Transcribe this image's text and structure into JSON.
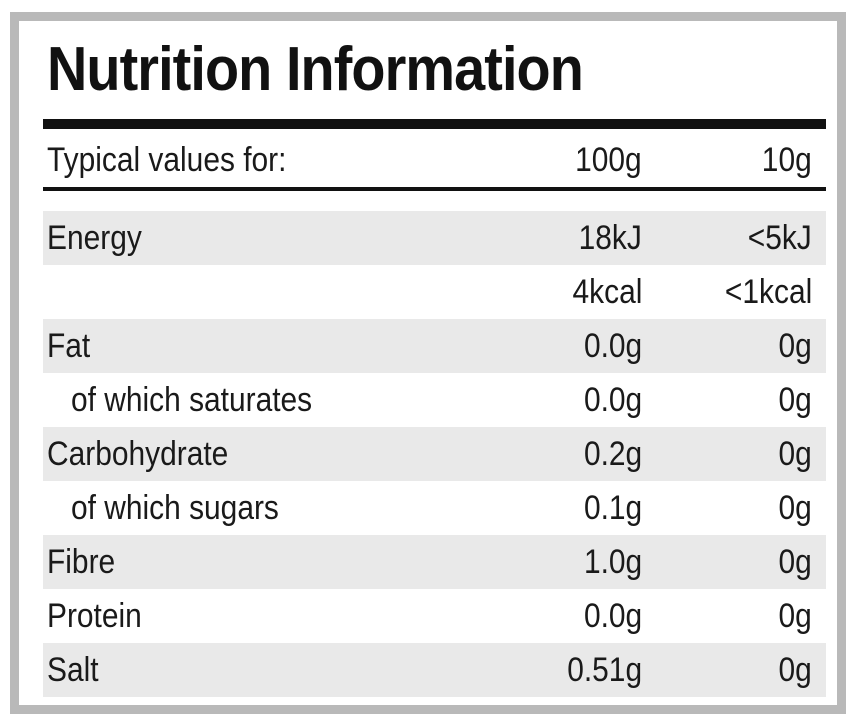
{
  "title": "Nutrition Information",
  "header": {
    "label": "Typical values for:",
    "col_100g": "100g",
    "col_10g": "10g"
  },
  "rows": [
    {
      "name": "Energy",
      "per100": "18kJ",
      "per10": "<5kJ",
      "indent": false,
      "shaded": true
    },
    {
      "name": "",
      "per100": "4kcal",
      "per10": "<1kcal",
      "indent": false,
      "shaded": false
    },
    {
      "name": "Fat",
      "per100": "0.0g",
      "per10": "0g",
      "indent": false,
      "shaded": true
    },
    {
      "name": "of which saturates",
      "per100": "0.0g",
      "per10": "0g",
      "indent": true,
      "shaded": false
    },
    {
      "name": "Carbohydrate",
      "per100": "0.2g",
      "per10": "0g",
      "indent": false,
      "shaded": true
    },
    {
      "name": "of which sugars",
      "per100": "0.1g",
      "per10": "0g",
      "indent": true,
      "shaded": false
    },
    {
      "name": "Fibre",
      "per100": "1.0g",
      "per10": "0g",
      "indent": false,
      "shaded": true
    },
    {
      "name": "Protein",
      "per100": "0.0g",
      "per10": "0g",
      "indent": false,
      "shaded": false
    },
    {
      "name": "Salt",
      "per100": "0.51g",
      "per10": "0g",
      "indent": false,
      "shaded": true
    }
  ],
  "colors": {
    "frame": "#b9b9b9",
    "shade": "#e9e9e9",
    "rule": "#111111",
    "text": "#1a1a1a"
  }
}
